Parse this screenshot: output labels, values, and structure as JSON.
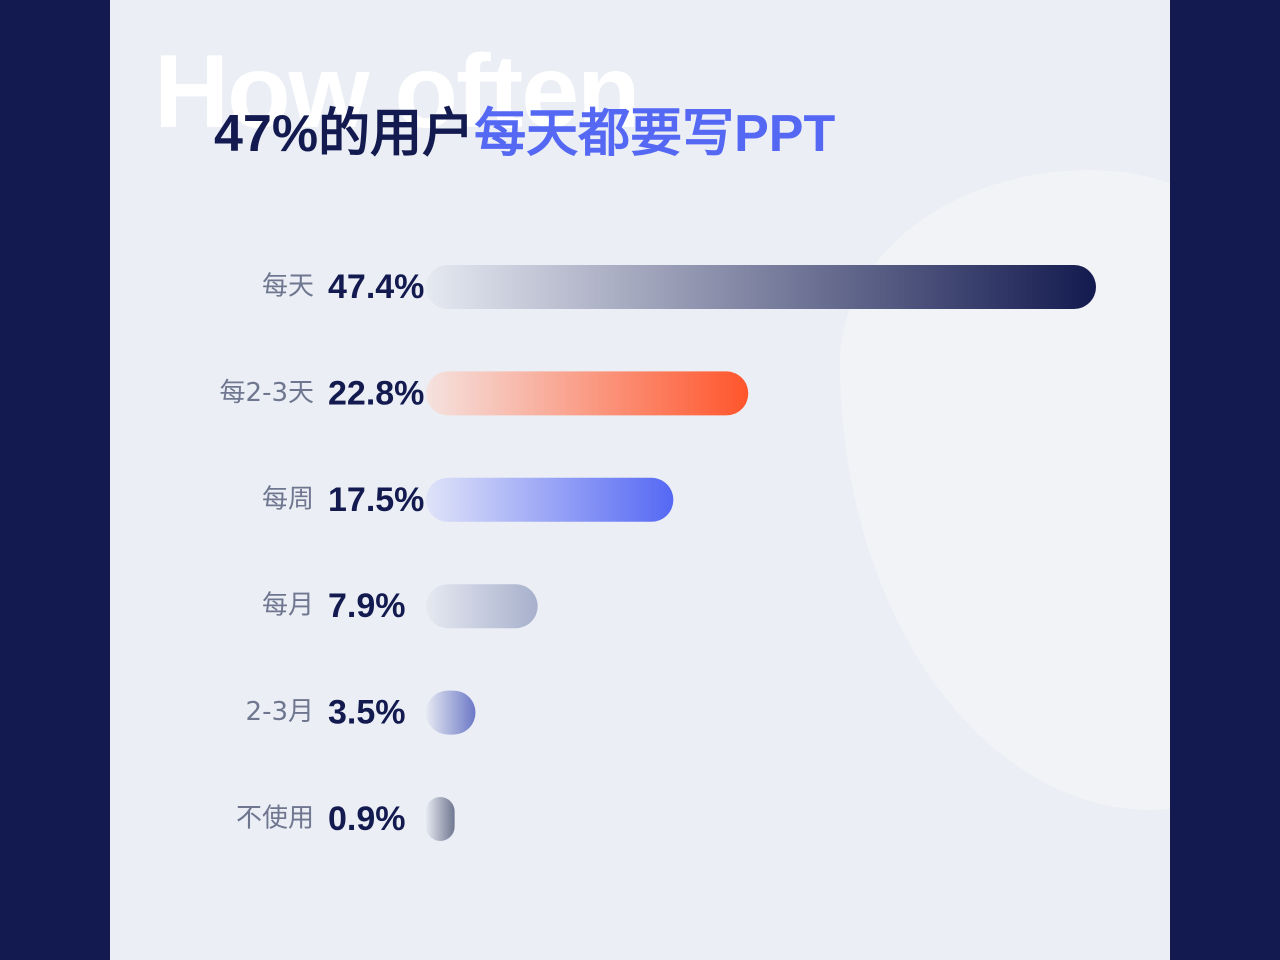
{
  "background_text": "How often",
  "title": {
    "part1": "47%的用户",
    "part2": "每天都要写PPT"
  },
  "colors": {
    "page_background": "#131a4f",
    "panel_background": "#ebeef4",
    "title_dark": "#131a4f",
    "title_accent": "#5568f4"
  },
  "chart_data": {
    "type": "bar",
    "orientation": "horizontal",
    "title": "47%的用户每天都要写PPT",
    "categories": [
      "每天",
      "每2-3天",
      "每周",
      "每月",
      "2-3月",
      "不使用"
    ],
    "values": [
      47.4,
      22.8,
      17.5,
      7.9,
      3.5,
      0.9
    ],
    "value_labels": [
      "47.4%",
      "22.8%",
      "17.5%",
      "7.9%",
      "3.5%",
      "0.9%"
    ],
    "unit": "%",
    "bar_colors": [
      {
        "from": "#e6e9f1",
        "to": "#131a4f"
      },
      {
        "from": "#f5e2df",
        "to": "#ff552b"
      },
      {
        "from": "#dfe3f8",
        "to": "#5568f4"
      },
      {
        "from": "#e6e9f1",
        "to": "#a7b0cc"
      },
      {
        "from": "#e6e9f1",
        "to": "#6c78c7"
      },
      {
        "from": "#e6e9f1",
        "to": "#6f7790"
      }
    ],
    "grid": false,
    "legend": "none"
  }
}
